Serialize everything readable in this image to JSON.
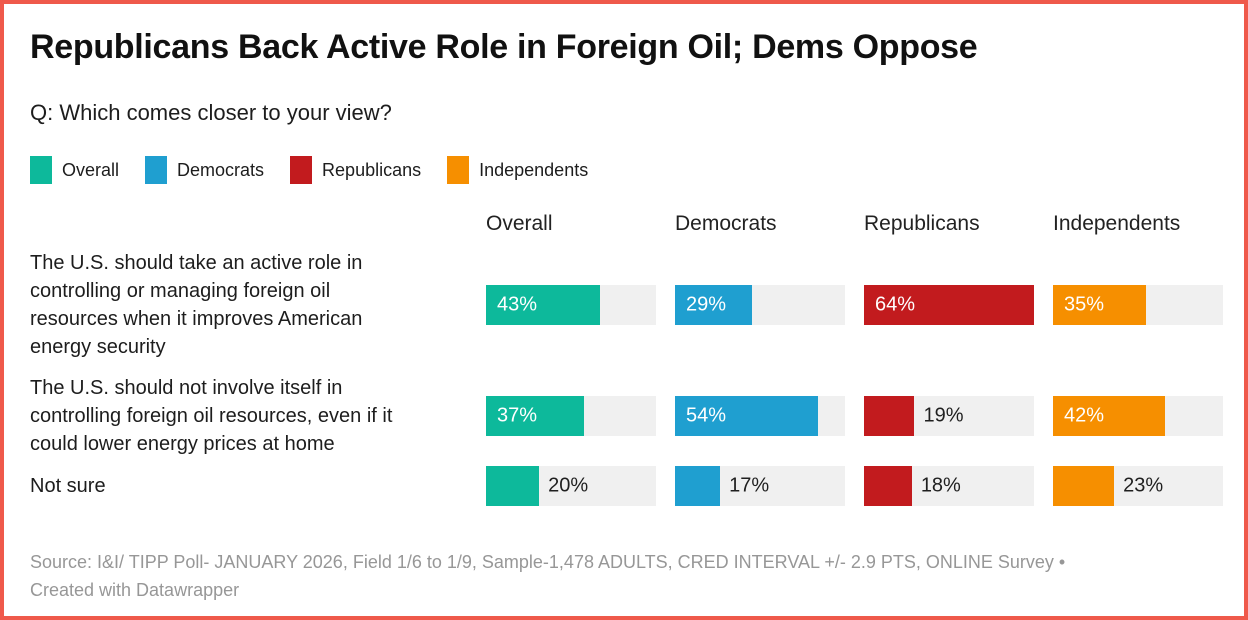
{
  "window": {
    "border_color": "#ef594b",
    "background": "#ffffff"
  },
  "header": {
    "title": "Republicans Back Active Role in Foreign Oil; Dems Oppose",
    "subtitle": "Q: Which comes closer to your view?"
  },
  "legend": {
    "items": [
      {
        "label": "Overall",
        "color": "#0db99b"
      },
      {
        "label": "Democrats",
        "color": "#1f9fd0"
      },
      {
        "label": "Republicans",
        "color": "#c21b1e"
      },
      {
        "label": "Independents",
        "color": "#f68f00"
      }
    ]
  },
  "chart_data": {
    "type": "bar",
    "variant": "horizontal-split-bars",
    "title": "Republicans Back Active Role in Foreign Oil; Dems Oppose",
    "subtitle": "Q: Which comes closer to your view?",
    "columns": [
      "Overall",
      "Democrats",
      "Republicans",
      "Independents"
    ],
    "series_colors": [
      "#0db99b",
      "#1f9fd0",
      "#c21b1e",
      "#f68f00"
    ],
    "track_color": "#f0f0f0",
    "scale_max": 64,
    "value_suffix": "%",
    "rows": [
      {
        "label": "The U.S. should take an active role in controlling or managing foreign oil resources when it improves American energy security",
        "label_lines": [
          "The U.S. should take an active role in",
          "controlling or managing foreign oil",
          "resources when it improves American",
          "energy security"
        ],
        "values": [
          43,
          29,
          64,
          35
        ]
      },
      {
        "label": "The U.S. should not involve itself in controlling foreign oil resources, even if it could lower energy prices at home",
        "label_lines": [
          "The U.S. should not involve itself in",
          "controlling foreign oil resources, even if it",
          "could lower energy prices at home"
        ],
        "values": [
          37,
          54,
          19,
          42
        ]
      },
      {
        "label": "Not sure",
        "label_lines": [
          "Not sure"
        ],
        "values": [
          20,
          17,
          18,
          23
        ]
      }
    ]
  },
  "footer": {
    "text": "Source: I&I/ TIPP Poll- JANUARY 2026, Field 1/6 to 1/9, Sample-1,478 ADULTS, CRED INTERVAL +/- 2.9 PTS, ONLINE Survey • Created with Datawrapper"
  }
}
